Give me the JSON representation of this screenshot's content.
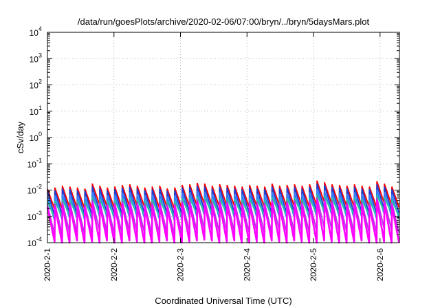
{
  "chart_data": {
    "type": "line",
    "title": "/data/run/goesPlots/archive/2020-02-06/07:00/bryn/../bryn/5daysMars.plot",
    "xlabel": "Coordinated Universal Time (UTC)",
    "ylabel": "cSv/day",
    "y_scale": "log",
    "ylim": [
      0.0001,
      10000
    ],
    "xlim": [
      "2020-02-01",
      "2020-02-06 07:00"
    ],
    "grid": true,
    "x_tick_labels": [
      "2020-2-1",
      "2020-2-2",
      "2020-2-3",
      "2020-2-4",
      "2020-2-5",
      "2020-2-6"
    ],
    "y_tick_labels": [
      {
        "base": "10",
        "exp": "-4"
      },
      {
        "base": "10",
        "exp": "-3"
      },
      {
        "base": "10",
        "exp": "-2"
      },
      {
        "base": "10",
        "exp": "-1"
      },
      {
        "base": "10",
        "exp": "0"
      },
      {
        "base": "10",
        "exp": "1"
      },
      {
        "base": "10",
        "exp": "2"
      },
      {
        "base": "10",
        "exp": "3"
      },
      {
        "base": "10",
        "exp": "4"
      }
    ],
    "series": [
      {
        "color": "#ff0000",
        "peaks": [
          0.011,
          0.012,
          0.014,
          0.013,
          0.012,
          0.011,
          0.017,
          0.014,
          0.012,
          0.013,
          0.015,
          0.016,
          0.014,
          0.012,
          0.013,
          0.014,
          0.011,
          0.012,
          0.015,
          0.016,
          0.018,
          0.017,
          0.014,
          0.016,
          0.015,
          0.014,
          0.013,
          0.015,
          0.014,
          0.013,
          0.017,
          0.014,
          0.015,
          0.016,
          0.014,
          0.016,
          0.022,
          0.019,
          0.016,
          0.015,
          0.014,
          0.016,
          0.014,
          0.013,
          0.021,
          0.017,
          0.013
        ],
        "troughs": [
          0.0019,
          0.002,
          0.0022,
          0.0021,
          0.002,
          0.0019,
          0.0028,
          0.0024,
          0.002,
          0.0021,
          0.0024,
          0.0026,
          0.0023,
          0.002,
          0.0021,
          0.0023,
          0.0019,
          0.002,
          0.0024,
          0.0026,
          0.0029,
          0.0027,
          0.0023,
          0.0026,
          0.0025,
          0.0023,
          0.0022,
          0.0024,
          0.0023,
          0.0022,
          0.0027,
          0.0023,
          0.0024,
          0.0026,
          0.0023,
          0.0026,
          0.0035,
          0.003,
          0.0026,
          0.0024,
          0.0023,
          0.0026,
          0.0023,
          0.0022,
          0.0033,
          0.0027,
          0.0022
        ]
      },
      {
        "color": "#1f3fd0",
        "peaks": [
          0.009,
          0.0095,
          0.011,
          0.0105,
          0.0095,
          0.009,
          0.013,
          0.011,
          0.0095,
          0.0105,
          0.012,
          0.0125,
          0.011,
          0.0095,
          0.0105,
          0.011,
          0.009,
          0.0095,
          0.012,
          0.0125,
          0.014,
          0.013,
          0.011,
          0.0125,
          0.012,
          0.011,
          0.0105,
          0.012,
          0.011,
          0.0105,
          0.013,
          0.011,
          0.012,
          0.0125,
          0.011,
          0.0125,
          0.017,
          0.015,
          0.0125,
          0.012,
          0.011,
          0.0125,
          0.011,
          0.0105,
          0.016,
          0.013,
          0.0105
        ],
        "troughs": [
          0.0011,
          0.0012,
          0.0013,
          0.0012,
          0.0012,
          0.0011,
          0.0016,
          0.0014,
          0.0012,
          0.0012,
          0.0014,
          0.0015,
          0.0013,
          0.0012,
          0.0012,
          0.0013,
          0.0011,
          0.0012,
          0.0014,
          0.0015,
          0.0017,
          0.0016,
          0.0013,
          0.0015,
          0.0014,
          0.0013,
          0.0013,
          0.0014,
          0.0013,
          0.0013,
          0.0016,
          0.0013,
          0.0014,
          0.0015,
          0.0013,
          0.0015,
          0.002,
          0.0018,
          0.0015,
          0.0014,
          0.0013,
          0.0015,
          0.0013,
          0.0013,
          0.0019,
          0.0016,
          0.0013
        ]
      },
      {
        "color": "#2f7fff",
        "peaks": [
          0.0055,
          0.006,
          0.0068,
          0.0065,
          0.006,
          0.0055,
          0.0082,
          0.007,
          0.006,
          0.0065,
          0.0075,
          0.0078,
          0.0068,
          0.006,
          0.0065,
          0.0068,
          0.0055,
          0.006,
          0.0075,
          0.0078,
          0.0088,
          0.0082,
          0.0068,
          0.0078,
          0.0075,
          0.0068,
          0.0065,
          0.0075,
          0.0068,
          0.0065,
          0.0082,
          0.0068,
          0.0075,
          0.0078,
          0.0068,
          0.0078,
          0.0105,
          0.0092,
          0.0078,
          0.0075,
          0.0068,
          0.0078,
          0.0068,
          0.0065,
          0.01,
          0.0082,
          0.0065
        ],
        "troughs": [
          0.0007,
          0.00075,
          0.00085,
          0.0008,
          0.00075,
          0.0007,
          0.001,
          0.00088,
          0.00075,
          0.0008,
          0.00092,
          0.00097,
          0.00085,
          0.00075,
          0.0008,
          0.00085,
          0.0007,
          0.00075,
          0.00092,
          0.00097,
          0.0011,
          0.001,
          0.00085,
          0.00097,
          0.00092,
          0.00085,
          0.0008,
          0.00092,
          0.00085,
          0.0008,
          0.001,
          0.00085,
          0.00092,
          0.00097,
          0.00085,
          0.00097,
          0.0013,
          0.00115,
          0.00097,
          0.00092,
          0.00085,
          0.00097,
          0.00085,
          0.0008,
          0.00125,
          0.001,
          0.0008
        ]
      },
      {
        "color": "#20c8a0",
        "peaks": [
          0.0036,
          0.0038,
          0.0043,
          0.0041,
          0.0038,
          0.0036,
          0.0052,
          0.0044,
          0.0038,
          0.0041,
          0.0047,
          0.0049,
          0.0043,
          0.0038,
          0.0041,
          0.0043,
          0.0036,
          0.0038,
          0.0047,
          0.0049,
          0.0055,
          0.0052,
          0.0043,
          0.0049,
          0.0047,
          0.0043,
          0.0041,
          0.0047,
          0.0043,
          0.0041,
          0.0052,
          0.0043,
          0.0047,
          0.0049,
          0.0043,
          0.0049,
          0.0066,
          0.0058,
          0.0049,
          0.0047,
          0.0043,
          0.0049,
          0.0043,
          0.0041,
          0.0063,
          0.0052,
          0.0041
        ],
        "troughs": [
          0.0009,
          0.00095,
          0.0011,
          0.001,
          0.00095,
          0.0009,
          0.0013,
          0.0011,
          0.00095,
          0.001,
          0.00118,
          0.00123,
          0.0011,
          0.00095,
          0.001,
          0.0011,
          0.0009,
          0.00095,
          0.00118,
          0.00123,
          0.0014,
          0.0013,
          0.0011,
          0.00123,
          0.00118,
          0.0011,
          0.001,
          0.00118,
          0.0011,
          0.001,
          0.0013,
          0.0011,
          0.00118,
          0.00123,
          0.0011,
          0.00123,
          0.0016,
          0.00145,
          0.00123,
          0.00118,
          0.0011,
          0.00123,
          0.0011,
          0.001,
          0.0016,
          0.0013,
          0.001
        ]
      },
      {
        "color": "#b040e0",
        "peaks": [
          0.0028,
          0.003,
          0.0034,
          0.0032,
          0.003,
          0.0028,
          0.0041,
          0.0035,
          0.003,
          0.0032,
          0.0037,
          0.0039,
          0.0034,
          0.003,
          0.0032,
          0.0034,
          0.0028,
          0.003,
          0.0037,
          0.0039,
          0.0044,
          0.0041,
          0.0034,
          0.0039,
          0.0037,
          0.0034,
          0.0032,
          0.0037,
          0.0034,
          0.0032,
          0.0041,
          0.0034,
          0.0037,
          0.0039,
          0.0034,
          0.0039,
          0.0052,
          0.0046,
          0.0039,
          0.0037,
          0.0034,
          0.0039,
          0.0034,
          0.0032,
          0.005,
          0.0041,
          0.0032
        ],
        "troughs": [
          0.0002,
          0.00021,
          0.00024,
          0.00023,
          0.00021,
          0.0002,
          0.00029,
          0.00025,
          0.00021,
          0.00023,
          0.00026,
          0.00027,
          0.00024,
          0.00021,
          0.00023,
          0.00024,
          0.0002,
          0.00021,
          0.00026,
          0.00027,
          0.00031,
          0.00029,
          0.00024,
          0.00027,
          0.00026,
          0.00024,
          0.00023,
          0.00026,
          0.00024,
          0.00023,
          0.00029,
          0.00024,
          0.00026,
          0.00027,
          0.00024,
          0.00027,
          0.00037,
          0.00032,
          0.00027,
          0.00026,
          0.00024,
          0.00027,
          0.00024,
          0.00023,
          0.00035,
          0.00029,
          0.00023
        ]
      },
      {
        "color": "#ff00ff",
        "peaks": [
          0.0022,
          0.0023,
          0.0026,
          0.0025,
          0.0023,
          0.0022,
          0.0032,
          0.0027,
          0.0023,
          0.0025,
          0.0029,
          0.003,
          0.0026,
          0.0023,
          0.0025,
          0.0026,
          0.0022,
          0.0023,
          0.0029,
          0.003,
          0.0034,
          0.0032,
          0.0026,
          0.003,
          0.0029,
          0.0026,
          0.0025,
          0.0029,
          0.0026,
          0.0025,
          0.0032,
          0.0026,
          0.0029,
          0.003,
          0.0026,
          0.003,
          0.004,
          0.0036,
          0.003,
          0.0029,
          0.0026,
          0.003,
          0.0026,
          0.0025,
          0.0039,
          0.0032,
          0.0025
        ],
        "troughs": [
          0.00011,
          0.0001,
          9e-05,
          0.00012,
          0.0001,
          0.00011,
          9e-05,
          0.00012,
          0.0001,
          8e-05,
          0.00012,
          0.00011,
          0.0001,
          9e-05,
          0.00011,
          0.00012,
          0.0001,
          9e-05,
          0.00011,
          0.00012,
          0.00013,
          0.00012,
          0.0001,
          0.00011,
          0.00012,
          0.0001,
          9e-05,
          0.00011,
          0.0001,
          0.00012,
          0.00011,
          0.0001,
          0.00012,
          0.00011,
          0.0001,
          9e-05,
          0.00012,
          0.00011,
          0.0001,
          9e-05,
          0.00011,
          0.00012,
          0.0001,
          9e-05,
          0.00011,
          0.0001,
          9e-05
        ]
      }
    ]
  }
}
